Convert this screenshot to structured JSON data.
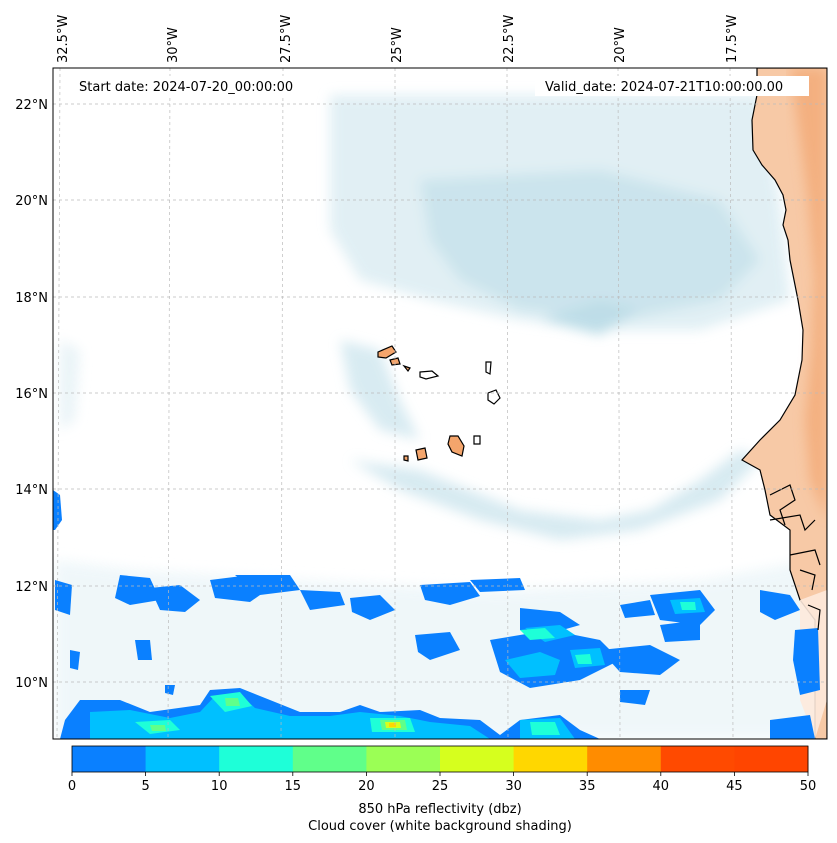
{
  "header": {
    "start_date": "Start date: 2024-07-20_00:00:00",
    "valid_date": "Valid_date: 2024-07-21T10:00:00.00"
  },
  "axes": {
    "lon_labels": [
      "32.5°W",
      "30°W",
      "27.5°W",
      "25°W",
      "22.5°W",
      "20°W",
      "17.5°W"
    ],
    "lat_labels": [
      "22°N",
      "20°N",
      "18°N",
      "16°N",
      "14°N",
      "12°N",
      "10°N"
    ]
  },
  "colorbar": {
    "ticks": [
      "0",
      "5",
      "10",
      "15",
      "20",
      "25",
      "30",
      "35",
      "40",
      "45",
      "50"
    ],
    "colors": [
      "#0a80ff",
      "#00c0ff",
      "#1effd8",
      "#60ff8a",
      "#9bff55",
      "#d6ff1e",
      "#ffd700",
      "#ff8c00",
      "#ff4a00",
      "#ff4500"
    ],
    "label_line1": "850 hPa reflectivity (dbz)",
    "label_line2": "Cloud cover (white background shading)"
  },
  "colors": {
    "land": "#f6c39c",
    "land_dark": "#ef9a5c",
    "cloud": "#cfe6ee",
    "cloud_dark": "#a9d3e1",
    "coast": "#000000"
  }
}
